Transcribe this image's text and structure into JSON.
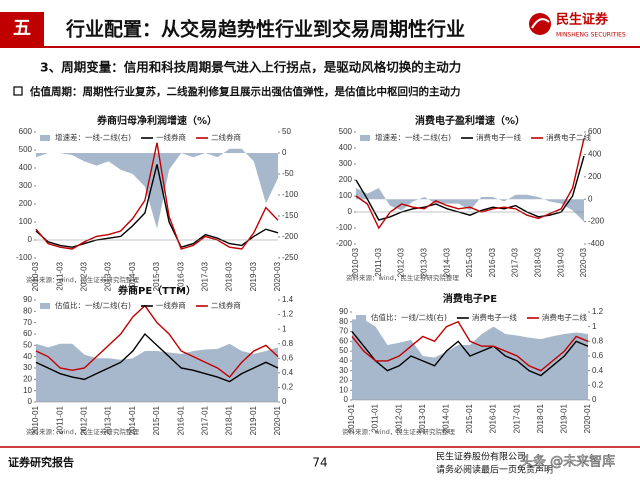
{
  "header": {
    "section": "五",
    "title": "行业配置：从交易趋势性行业到交易周期性行业",
    "logo": "民生证券",
    "logo_en": "MINSHENG SECURITIES"
  },
  "subtitle": "3、周期变量：信用和科技周期景气进入上行拐点，是驱动风格切换的主动力",
  "bullet": "估值周期：周期性行业复苏，二线盈利修复且展示出强估值弹性，是估值比中枢回归的主动力",
  "footer": {
    "left": "证券研究报告",
    "page": "74",
    "company": "民生证券股份有限公司",
    "disclaimer": "请务必阅读最后一页免责声明",
    "watermark": "头条 @未来智库"
  },
  "chart_data": [
    {
      "type": "line",
      "title": "券商归母净利润增速（%）",
      "source": "资料来源：wind，民生证券研究院整理",
      "categories": [
        "2010-03",
        null,
        "2011-03",
        null,
        "2012-03",
        null,
        "2013-03",
        null,
        "2014-03",
        null,
        "2015-03",
        null,
        "2016-03",
        null,
        "2017-03",
        null,
        "2018-03",
        null,
        "2019-03",
        null,
        "2020-03"
      ],
      "ylim": [
        -100,
        600
      ],
      "yticks": [
        -100,
        0,
        100,
        200,
        300,
        400,
        500,
        600
      ],
      "y2lim": [
        -250,
        50
      ],
      "y2ticks": [
        -250,
        -200,
        -150,
        -100,
        -50,
        0,
        50
      ],
      "series": [
        {
          "name": "增速差：一线-二线(右)",
          "type": "area",
          "axis": "y2",
          "color": "#a8b8cc",
          "values": [
            -10,
            0,
            0,
            -5,
            -20,
            -30,
            -20,
            -40,
            -50,
            -80,
            -180,
            -40,
            0,
            -10,
            0,
            -10,
            10,
            10,
            -20,
            -120,
            -60
          ]
        },
        {
          "name": "一线券商",
          "color": "#000000",
          "values": [
            50,
            -10,
            -30,
            -40,
            -20,
            0,
            10,
            20,
            80,
            150,
            420,
            100,
            -40,
            -20,
            30,
            10,
            -20,
            -30,
            20,
            60,
            40
          ]
        },
        {
          "name": "二线券商",
          "color": "#c00000",
          "values": [
            60,
            -20,
            -40,
            -50,
            -10,
            20,
            30,
            50,
            120,
            220,
            540,
            130,
            -50,
            -30,
            20,
            0,
            -40,
            -50,
            40,
            180,
            110
          ]
        }
      ]
    },
    {
      "type": "line",
      "title": "消费电子盈利增速（%）",
      "source": "资料来源：wind，民生证券研究院整理",
      "categories": [
        "2010-03",
        null,
        "2011-03",
        null,
        "2012-03",
        null,
        "2013-03",
        null,
        "2014-03",
        null,
        "2015-03",
        null,
        "2016-03",
        null,
        "2017-03",
        null,
        "2018-03",
        null,
        "2019-03",
        null,
        "2020-03"
      ],
      "ylim": [
        -200,
        500
      ],
      "yticks": [
        -200,
        -100,
        0,
        100,
        200,
        300,
        400,
        500
      ],
      "y2lim": [
        -400,
        600
      ],
      "y2ticks": [
        -400,
        -200,
        0,
        200,
        400,
        600
      ],
      "series": [
        {
          "name": "增速差：一线-二线(右)",
          "type": "area",
          "axis": "y2",
          "color": "#a8b8cc",
          "values": [
            100,
            50,
            100,
            -60,
            -100,
            -20,
            20,
            -40,
            -40,
            -40,
            -100,
            20,
            20,
            -20,
            40,
            40,
            20,
            -20,
            -40,
            -100,
            -200
          ]
        },
        {
          "name": "消费电子一线",
          "color": "#000000",
          "values": [
            200,
            80,
            -50,
            -30,
            0,
            20,
            30,
            50,
            20,
            0,
            -20,
            10,
            30,
            20,
            40,
            0,
            -30,
            -20,
            0,
            100,
            350
          ]
        },
        {
          "name": "消费电子二线",
          "color": "#c00000",
          "values": [
            100,
            50,
            -100,
            0,
            50,
            30,
            20,
            70,
            40,
            20,
            30,
            0,
            20,
            30,
            20,
            -20,
            -40,
            -10,
            20,
            150,
            460
          ]
        }
      ]
    },
    {
      "type": "line",
      "title": "券商PE（TTM）",
      "source": "资料来源：wind，民生证券研究院整理",
      "categories": [
        "2010-01",
        null,
        "2011-01",
        null,
        "2012-01",
        null,
        "2013-01",
        null,
        "2014-01",
        null,
        "2015-01",
        null,
        "2016-01",
        null,
        "2017-01",
        null,
        "2018-01",
        null,
        "2019-01",
        null,
        "2020-01"
      ],
      "ylim": [
        0,
        90
      ],
      "yticks": [
        0,
        10,
        20,
        30,
        40,
        50,
        60,
        70,
        80,
        90
      ],
      "y2lim": [
        0,
        1.4
      ],
      "y2ticks": [
        0,
        0.2,
        0.4,
        0.6,
        0.8,
        1,
        1.2,
        1.4
      ],
      "series": [
        {
          "name": "估值比：一线/二线(右)",
          "type": "area",
          "axis": "y2",
          "color": "#a8b8cc",
          "values": [
            0.8,
            0.75,
            0.8,
            0.8,
            0.65,
            0.6,
            0.6,
            0.58,
            0.6,
            0.7,
            0.7,
            0.68,
            0.66,
            0.7,
            0.72,
            0.73,
            0.8,
            0.7,
            0.66,
            0.7,
            0.75
          ]
        },
        {
          "name": "一线券商",
          "color": "#000000",
          "values": [
            35,
            30,
            25,
            22,
            20,
            25,
            30,
            35,
            45,
            60,
            50,
            40,
            30,
            28,
            25,
            22,
            18,
            25,
            30,
            35,
            30
          ]
        },
        {
          "name": "二线券商",
          "color": "#c00000",
          "values": [
            45,
            40,
            30,
            28,
            30,
            40,
            50,
            60,
            75,
            85,
            70,
            60,
            45,
            40,
            35,
            30,
            22,
            35,
            45,
            50,
            40
          ]
        }
      ]
    },
    {
      "type": "line",
      "title": "消费电子PE",
      "source": "资料来源：wind，民生证券研究院整理",
      "categories": [
        "2010-01",
        null,
        "2011-01",
        null,
        "2012-01",
        null,
        "2013-01",
        null,
        "2014-01",
        null,
        "2015-01",
        null,
        "2016-01",
        null,
        "2017-01",
        null,
        "2018-01",
        null,
        "2019-01",
        null,
        "2020-01"
      ],
      "ylim": [
        0,
        90
      ],
      "yticks": [
        0,
        10,
        20,
        30,
        40,
        50,
        60,
        70,
        80,
        90
      ],
      "y2lim": [
        0,
        1.2
      ],
      "y2ticks": [
        0,
        0.2,
        0.4,
        0.6,
        0.8,
        1,
        1.2
      ],
      "series": [
        {
          "name": "估值比：一线/二线(右)",
          "type": "area",
          "axis": "y2",
          "color": "#a8b8cc",
          "values": [
            1.1,
            1.1,
            1.0,
            0.75,
            0.78,
            0.82,
            0.6,
            0.58,
            0.66,
            0.75,
            0.75,
            0.9,
            1.0,
            0.9,
            0.88,
            0.85,
            0.83,
            0.87,
            0.9,
            0.92,
            0.9
          ]
        },
        {
          "name": "消费电子一线",
          "color": "#000000",
          "values": [
            70,
            55,
            40,
            30,
            35,
            45,
            40,
            35,
            50,
            60,
            45,
            50,
            55,
            45,
            40,
            30,
            25,
            35,
            45,
            60,
            55
          ]
        },
        {
          "name": "消费电子二线",
          "color": "#c00000",
          "values": [
            65,
            50,
            40,
            40,
            45,
            55,
            65,
            60,
            75,
            80,
            60,
            55,
            55,
            50,
            45,
            35,
            30,
            40,
            50,
            65,
            60
          ]
        }
      ]
    }
  ]
}
